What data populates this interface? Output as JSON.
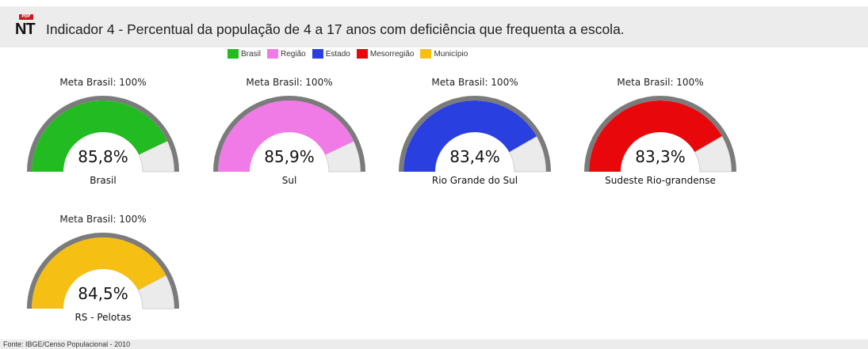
{
  "header": {
    "icon_tag": "PDF",
    "icon_text": "NT",
    "title": "Indicador 4 - Percentual da população de 4 a 17 anos com deficiência que frequenta a escola."
  },
  "legend": [
    {
      "label": "Brasil",
      "color": "#22bb22"
    },
    {
      "label": "Região",
      "color": "#f07be6"
    },
    {
      "label": "Estado",
      "color": "#2a3fe0"
    },
    {
      "label": "Mesorregião",
      "color": "#e8070b"
    },
    {
      "label": "Município",
      "color": "#f5c013"
    }
  ],
  "chart_data": [
    {
      "type": "gauge",
      "meta_label": "Meta Brasil: 100%",
      "value": 85.8,
      "value_label": "85,8%",
      "name": "Brasil",
      "color": "#22bb22",
      "range": [
        0,
        100
      ]
    },
    {
      "type": "gauge",
      "meta_label": "Meta Brasil: 100%",
      "value": 85.9,
      "value_label": "85,9%",
      "name": "Sul",
      "color": "#f07be6",
      "range": [
        0,
        100
      ]
    },
    {
      "type": "gauge",
      "meta_label": "Meta Brasil: 100%",
      "value": 83.4,
      "value_label": "83,4%",
      "name": "Rio Grande do Sul",
      "color": "#2a3fe0",
      "range": [
        0,
        100
      ]
    },
    {
      "type": "gauge",
      "meta_label": "Meta Brasil: 100%",
      "value": 83.3,
      "value_label": "83,3%",
      "name": "Sudeste Rio-grandense",
      "color": "#e8070b",
      "range": [
        0,
        100
      ]
    },
    {
      "type": "gauge",
      "meta_label": "Meta Brasil: 100%",
      "value": 84.5,
      "value_label": "84,5%",
      "name": "RS - Pelotas",
      "color": "#f5c013",
      "range": [
        0,
        100
      ]
    }
  ],
  "footer": {
    "source": "Fonte: IBGE/Censo Populacional - 2010"
  }
}
